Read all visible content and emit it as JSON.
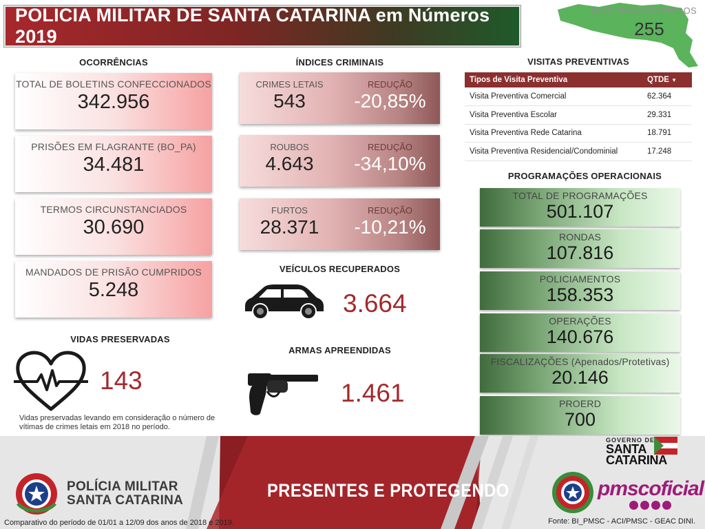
{
  "header": {
    "title": "POLICIA MILITAR DE SANTA CATARINA em Números 2019",
    "dias_label": "DIAS TRANSCORRIDOS",
    "dias_value": "255"
  },
  "ocorrencias": {
    "title": "OCORRÊNCIAS",
    "items": [
      {
        "label": "TOTAL DE BOLETINS CONFECCIONADOS",
        "value": "342.956"
      },
      {
        "label": "PRISÕES EM FLAGRANTE (BO_PA)",
        "value": "34.481"
      },
      {
        "label": "TERMOS CIRCUNSTANCIADOS",
        "value": "30.690"
      },
      {
        "label": "MANDADOS DE PRISÃO CUMPRIDOS",
        "value": "5.248"
      }
    ]
  },
  "indices": {
    "title": "ÍNDICES CRIMINAIS",
    "items": [
      {
        "label": "CRIMES LETAIS",
        "value": "543",
        "reduction_label": "REDUÇÃO",
        "reduction": "-20,85%"
      },
      {
        "label": "ROUBOS",
        "value": "4.643",
        "reduction_label": "REDUÇÃO",
        "reduction": "-34,10%"
      },
      {
        "label": "FURTOS",
        "value": "28.371",
        "reduction_label": "REDUÇÃO",
        "reduction": "-10,21%"
      }
    ]
  },
  "veiculos": {
    "title": "VEÍCULOS RECUPERADOS",
    "value": "3.664",
    "icon": "car-icon"
  },
  "armas": {
    "title": "ARMAS APREENDIDAS",
    "value": "1.461",
    "icon": "revolver-icon"
  },
  "vidas": {
    "title": "VIDAS PRESERVADAS",
    "value": "143",
    "icon": "heart-pulse-icon",
    "note": "Vidas preservadas levando em consideração o número de vítimas de crimes letais em 2018  no período."
  },
  "visitas": {
    "title": "VISITAS PREVENTIVAS",
    "col_type": "Tipos de Visita Preventiva",
    "col_qtde": "QTDE",
    "rows": [
      {
        "type": "Visita Preventiva Comercial",
        "qtde": "62.364"
      },
      {
        "type": "Visita Preventiva Escolar",
        "qtde": "29.331"
      },
      {
        "type": "Visita Preventiva Rede Catarina",
        "qtde": "18.791"
      },
      {
        "type": "Visita Preventiva Residencial/Condominial",
        "qtde": "17.248"
      }
    ]
  },
  "programacoes": {
    "title": "PROGRAMAÇÕES OPERACIONAIS",
    "items": [
      {
        "label": "TOTAL DE PROGRAMAÇÕES",
        "value": "501.107"
      },
      {
        "label": "RONDAS",
        "value": "107.816"
      },
      {
        "label": "POLICIAMENTOS",
        "value": "158.353"
      },
      {
        "label": "OPERAÇÕES",
        "value": "140.676"
      },
      {
        "label": "FISCALIZAÇÕES (Apenados/Protetivas)",
        "value": "20.146"
      },
      {
        "label": "PROERD",
        "value": "700"
      }
    ]
  },
  "footer": {
    "pm_line1": "POLÍCIA MILITAR",
    "pm_line2": "SANTA CATARINA",
    "slogan": "PRESENTES E PROTEGENDO",
    "gov_line": "GOVERNO DE",
    "gov_name1": "SANTA",
    "gov_name2": "CATARINA",
    "social": "pmscoficial",
    "left_note": "Comparativo do período de 01/01 a 12/09 dos anos de 2018 e 2019.",
    "right_note": "Fonte: BI_PMSC - ACI/PMSC - GEAC DINI."
  },
  "colors": {
    "brand_red": "#a3292c",
    "brand_green": "#4a7a44",
    "table_header": "#8b2f2f"
  }
}
